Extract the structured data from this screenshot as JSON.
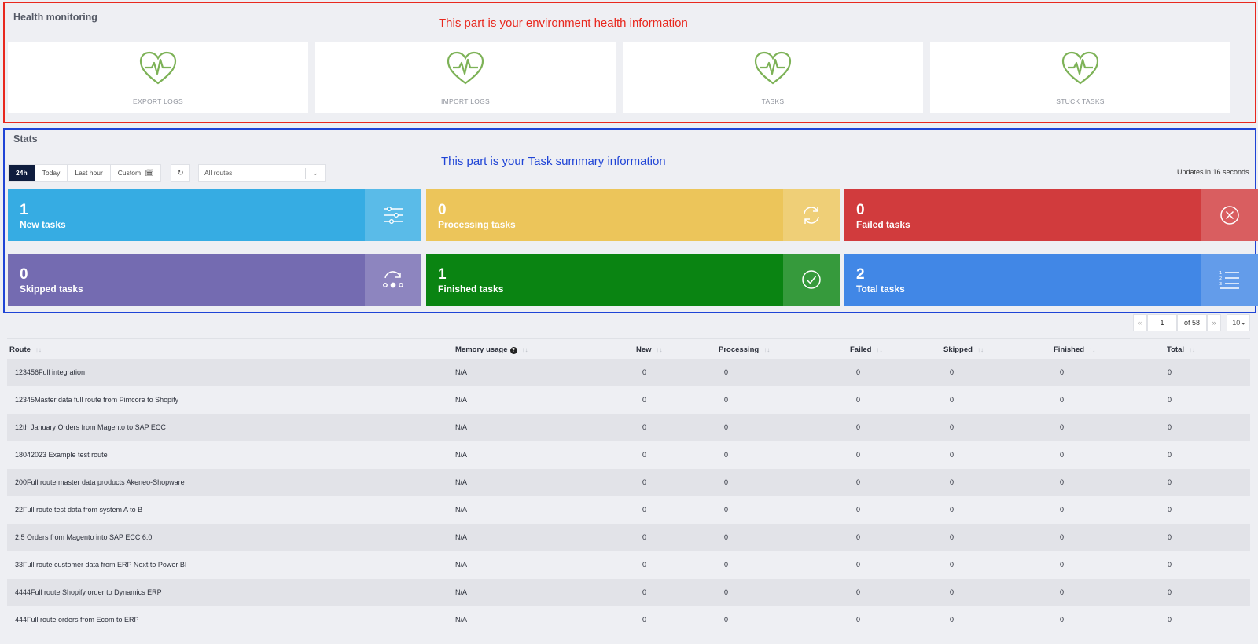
{
  "health": {
    "title": "Health monitoring",
    "annotation": "This part is your environment health information",
    "cards": [
      {
        "label": "EXPORT LOGS",
        "icon": "heartbeat-icon"
      },
      {
        "label": "IMPORT LOGS",
        "icon": "heartbeat-icon"
      },
      {
        "label": "TASKS",
        "icon": "heartbeat-icon"
      },
      {
        "label": "STUCK TASKS",
        "icon": "heartbeat-icon"
      }
    ],
    "icon_color": "#7db257"
  },
  "stats": {
    "title": "Stats",
    "annotation": "This part is your Task summary information",
    "time_filters": [
      "24h",
      "Today",
      "Last hour",
      "Custom"
    ],
    "active_filter": "24h",
    "route_select": "All routes",
    "updates_text": "Updates in 16 seconds.",
    "tiles": [
      {
        "value": "1",
        "label": "New tasks",
        "color": "#36ace3",
        "icon": "sliders-icon"
      },
      {
        "value": "0",
        "label": "Processing tasks",
        "color": "#ecc55a",
        "icon": "refresh-icon"
      },
      {
        "value": "0",
        "label": "Failed tasks",
        "color": "#d13b3d",
        "icon": "close-circle-icon"
      },
      {
        "value": "0",
        "label": "Skipped tasks",
        "color": "#746bb1",
        "icon": "skip-icon"
      },
      {
        "value": "1",
        "label": "Finished tasks",
        "color": "#0a8412",
        "icon": "check-circle-icon"
      },
      {
        "value": "2",
        "label": "Total tasks",
        "color": "#4187e6",
        "icon": "list-icon"
      }
    ]
  },
  "pagination": {
    "prev": "«",
    "page": "1",
    "of_text": "of 58",
    "next": "»",
    "page_size": "10"
  },
  "table": {
    "columns": [
      "Route",
      "Memory usage",
      "New",
      "Processing",
      "Failed",
      "Skipped",
      "Finished",
      "Total"
    ],
    "rows": [
      [
        "123456Full integration",
        "N/A",
        "0",
        "0",
        "0",
        "0",
        "0",
        "0"
      ],
      [
        "12345Master data full route from Pimcore to Shopify",
        "N/A",
        "0",
        "0",
        "0",
        "0",
        "0",
        "0"
      ],
      [
        "12th January Orders from Magento to SAP ECC",
        "N/A",
        "0",
        "0",
        "0",
        "0",
        "0",
        "0"
      ],
      [
        "18042023 Example test route",
        "N/A",
        "0",
        "0",
        "0",
        "0",
        "0",
        "0"
      ],
      [
        "200Full route master data products Akeneo-Shopware",
        "N/A",
        "0",
        "0",
        "0",
        "0",
        "0",
        "0"
      ],
      [
        "22Full route test data from system A to B",
        "N/A",
        "0",
        "0",
        "0",
        "0",
        "0",
        "0"
      ],
      [
        "2.5 Orders from Magento into SAP ECC 6.0",
        "N/A",
        "0",
        "0",
        "0",
        "0",
        "0",
        "0"
      ],
      [
        "33Full route customer data from ERP Next to Power BI",
        "N/A",
        "0",
        "0",
        "0",
        "0",
        "0",
        "0"
      ],
      [
        "4444Full route Shopify order to Dynamics ERP",
        "N/A",
        "0",
        "0",
        "0",
        "0",
        "0",
        "0"
      ],
      [
        "444Full route orders from Ecom to ERP",
        "N/A",
        "0",
        "0",
        "0",
        "0",
        "0",
        "0"
      ]
    ]
  }
}
